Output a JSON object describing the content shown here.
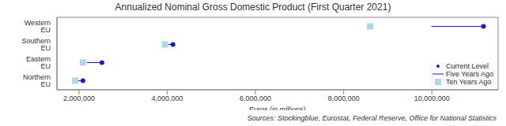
{
  "chart_data": {
    "type": "dot_range",
    "title": "Annualized Nominal Gross Domestic Product (First Quarter 2021)",
    "orientation": "horizontal",
    "categories": [
      "Western EU",
      "Southern EU",
      "Eastern EU",
      "Northern EU"
    ],
    "series": [
      {
        "name": "Current Level",
        "type": "scatter",
        "marker": "circle",
        "color": "#1a1acc",
        "values": [
          11170000,
          4130000,
          2520000,
          2090000
        ]
      },
      {
        "name": "Five Years Ago",
        "type": "range",
        "line_style": "solid",
        "color": "#1a1acc",
        "values": [
          9990000,
          4020000,
          2180000,
          1960000
        ]
      },
      {
        "name": "Ten Years Ago",
        "type": "scatter",
        "marker": "square",
        "color": "#add8e6",
        "values": [
          8600000,
          3950000,
          2090000,
          1910000
        ]
      }
    ],
    "xlabel": "Euros (in millions)",
    "xlim": [
      1500000,
      11500000
    ],
    "xticks": [
      {
        "value": 2000000,
        "label": "2,000,000"
      },
      {
        "value": 4000000,
        "label": "4,000,000"
      },
      {
        "value": 6000000,
        "label": "6,000,000"
      },
      {
        "value": 8000000,
        "label": "8,000,000"
      },
      {
        "value": 10000000,
        "label": "10,000,000"
      }
    ],
    "legend": "lower right",
    "source": "Sources: Stockingblue, Eurostat, Federal Reserve, Office for National Statistics"
  }
}
